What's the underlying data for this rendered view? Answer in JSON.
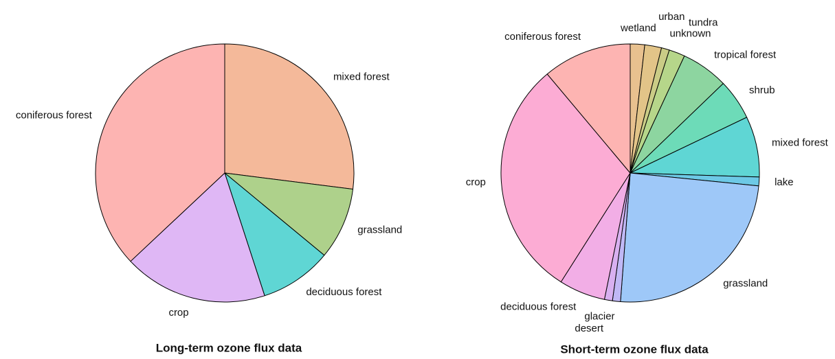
{
  "chart_data": [
    {
      "type": "pie",
      "title": "Long-term ozone flux data",
      "categories": [
        "mixed forest",
        "grassland",
        "deciduous forest",
        "crop",
        "coniferous forest"
      ],
      "values": [
        27,
        9,
        9,
        18,
        37
      ],
      "colors": [
        "#f4b99a",
        "#aed18b",
        "#5fd6d4",
        "#dfb7f5",
        "#fdb4b2"
      ]
    },
    {
      "type": "pie",
      "title": "Short-term ozone flux data",
      "categories": [
        "wetland",
        "urban",
        "unknown",
        "tundra",
        "tropical forest",
        "shrub",
        "mixed forest",
        "lake",
        "grassland",
        "glacier",
        "desert",
        "deciduous forest",
        "crop",
        "coniferous forest"
      ],
      "values": [
        1.8,
        2.1,
        1,
        2,
        5.9,
        5.1,
        7.6,
        1.1,
        24.6,
        1,
        1,
        5.8,
        29.9,
        11.1
      ],
      "colors": [
        "#e8c18f",
        "#e2c488",
        "#cacc86",
        "#b6d68a",
        "#8dd5a0",
        "#6ddbb8",
        "#5fd6d4",
        "#6dc9e6",
        "#9ec8f8",
        "#c0b8f5",
        "#d8b0f0",
        "#f2aee6",
        "#fcacd4",
        "#fdb4b2"
      ]
    }
  ]
}
